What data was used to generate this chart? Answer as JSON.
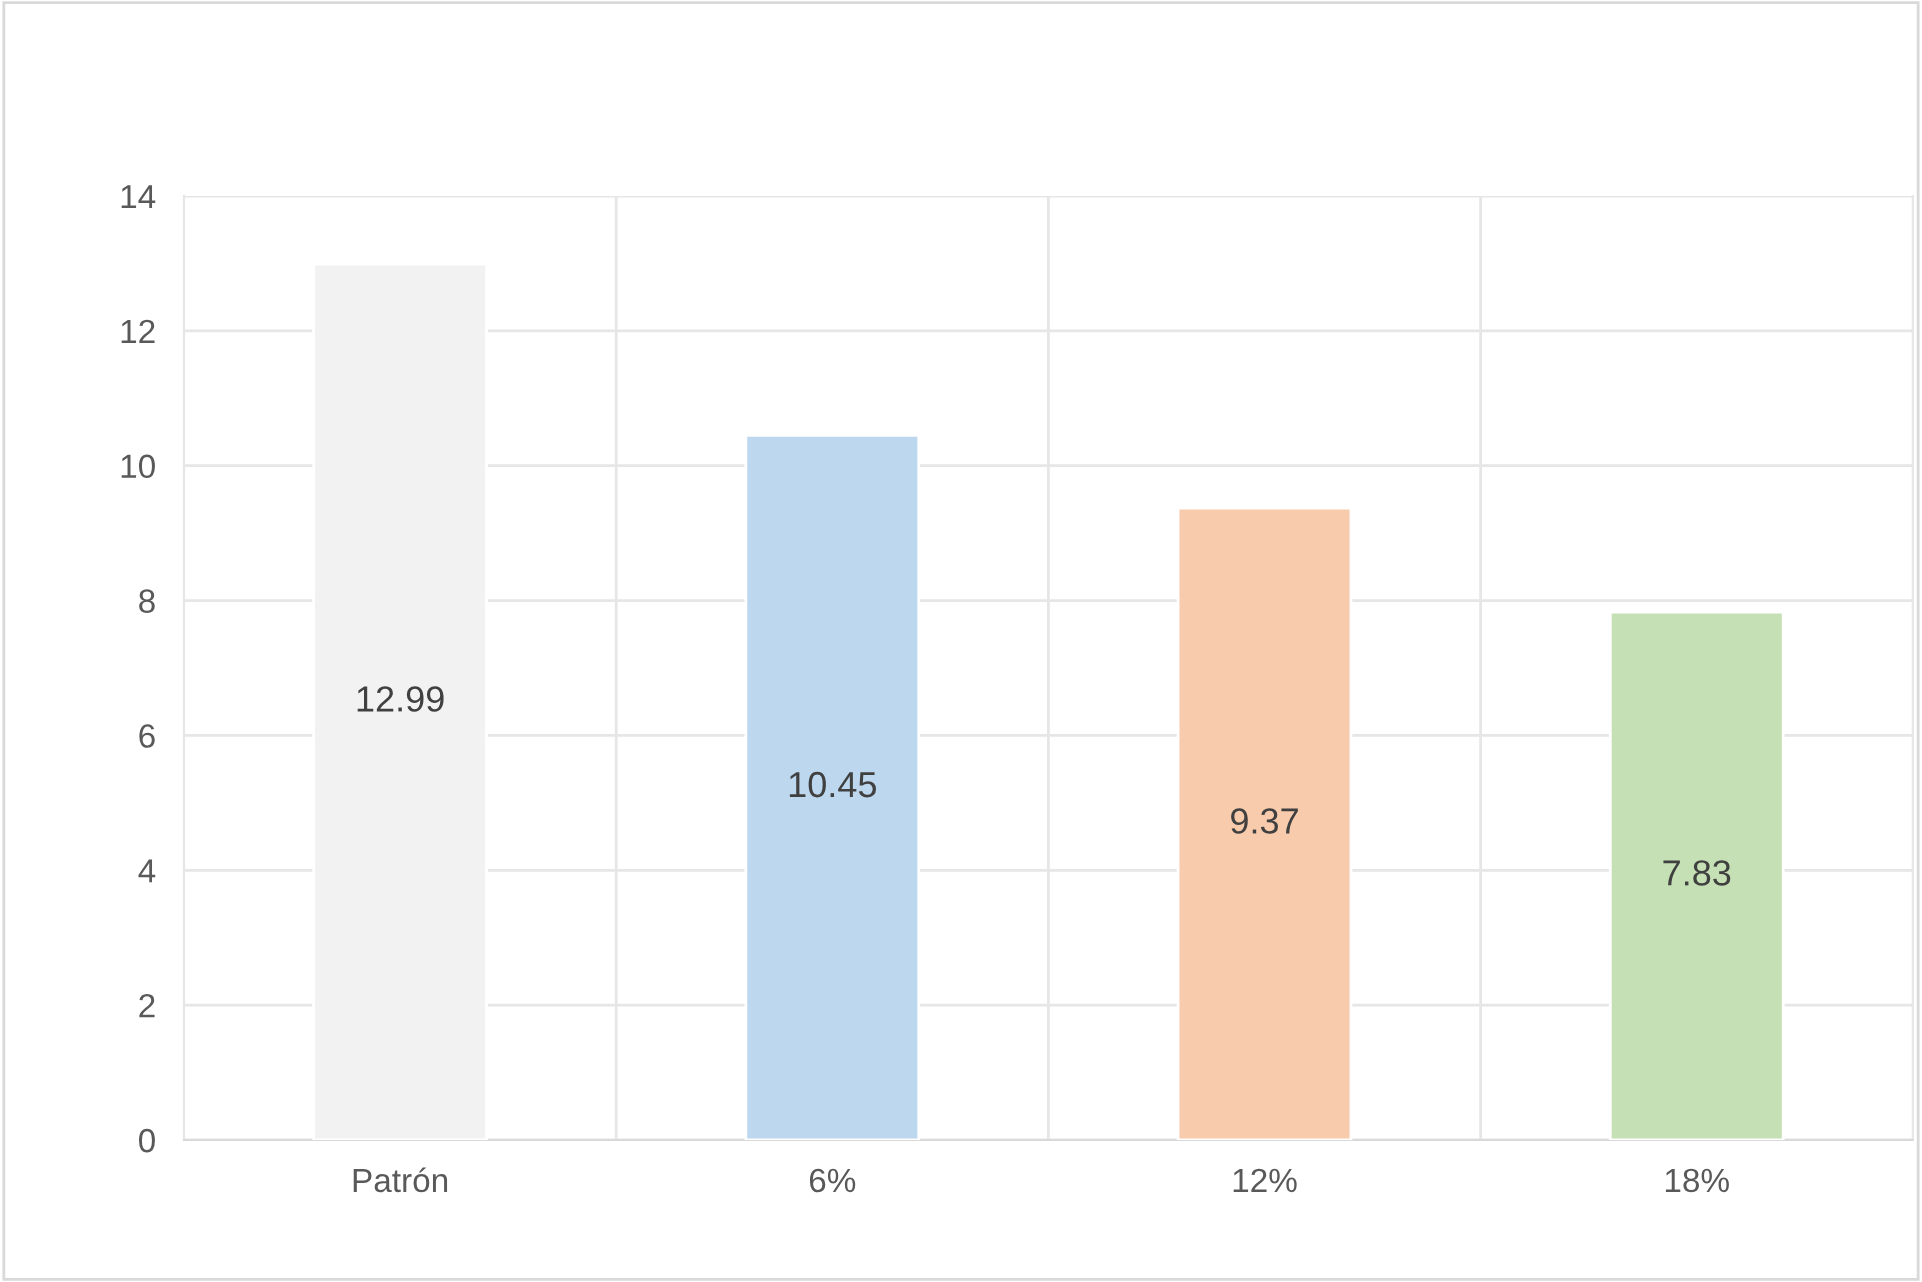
{
  "chart_data": {
    "type": "bar",
    "categories": [
      "Patrón",
      "6%",
      "12%",
      "18%"
    ],
    "values": [
      12.99,
      10.45,
      9.37,
      7.83
    ],
    "colors": [
      "#f2f2f2",
      "#bdd7ee",
      "#f8cbad",
      "#c5e0b4"
    ],
    "ylim": [
      0,
      14
    ],
    "yticks": [
      0,
      2,
      4,
      6,
      8,
      10,
      12,
      14
    ],
    "grid": true,
    "data_labels": true
  }
}
